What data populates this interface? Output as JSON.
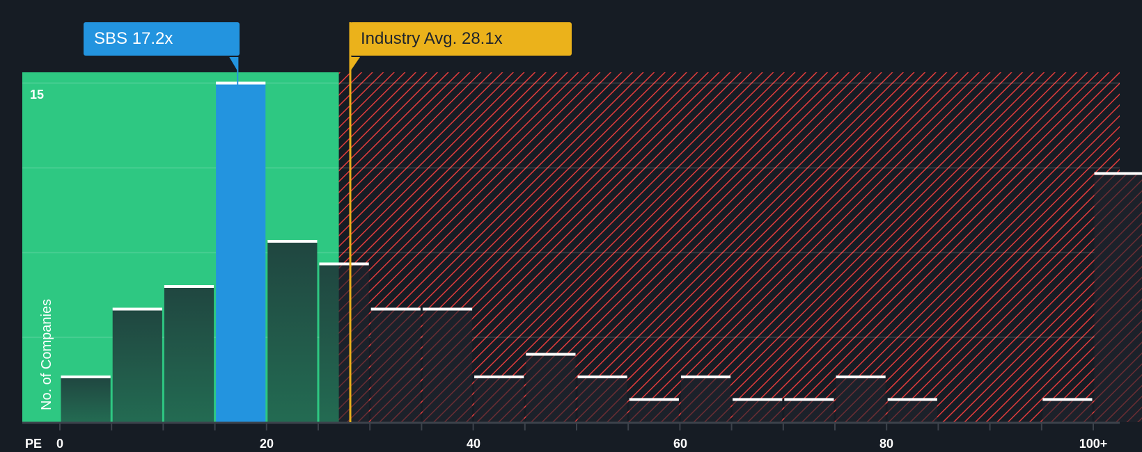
{
  "chart_data": {
    "type": "bar",
    "title": "",
    "xlabel": "PE",
    "ylabel": "No. of Companies",
    "x_tick_labels": [
      "0",
      "20",
      "40",
      "60",
      "80",
      "100+"
    ],
    "y_tick_labels": [
      "15"
    ],
    "ylim": [
      0,
      15
    ],
    "bin_width": 5,
    "categories": [
      "0-5",
      "5-10",
      "10-15",
      "15-20",
      "20-25",
      "25-30",
      "30-35",
      "35-40",
      "40-45",
      "45-50",
      "50-55",
      "55-60",
      "60-65",
      "65-70",
      "70-75",
      "75-80",
      "80-85",
      "85-90",
      "90-95",
      "95-100",
      "100+"
    ],
    "values": [
      2,
      5,
      6,
      15,
      8,
      7,
      5,
      5,
      2,
      3,
      2,
      1,
      2,
      1,
      1,
      2,
      1,
      0,
      0,
      1,
      11
    ],
    "highlight_bin": "15-20",
    "annotations": [
      {
        "label": "SBS 17.2x",
        "value": 17.2,
        "color": "#2394df"
      },
      {
        "label": "Industry Avg. 28.1x",
        "value": 28.1,
        "color": "#ebb21b"
      }
    ],
    "regions": [
      {
        "name": "below-average",
        "from": 0,
        "to": 27,
        "color": "#2ec882"
      },
      {
        "name": "above-average",
        "from": 27,
        "to": 105,
        "color": "#e23c3c",
        "pattern": "diagonal-hatch"
      }
    ],
    "grid": true
  },
  "labels": {
    "sbs_callout": "SBS 17.2x",
    "industry_callout": "Industry Avg. 28.1x",
    "pe": "PE",
    "ylabel": "No. of Companies",
    "ytick_15": "15",
    "xticks": [
      "0",
      "20",
      "40",
      "60",
      "80",
      "100+"
    ]
  },
  "colors": {
    "background": "#161c24",
    "green_region": "#2ec882",
    "bar_dark": "#214a3f",
    "highlight_bar": "#2394df",
    "industry_line": "#ebb21b",
    "hatch": "#e23c3c"
  }
}
